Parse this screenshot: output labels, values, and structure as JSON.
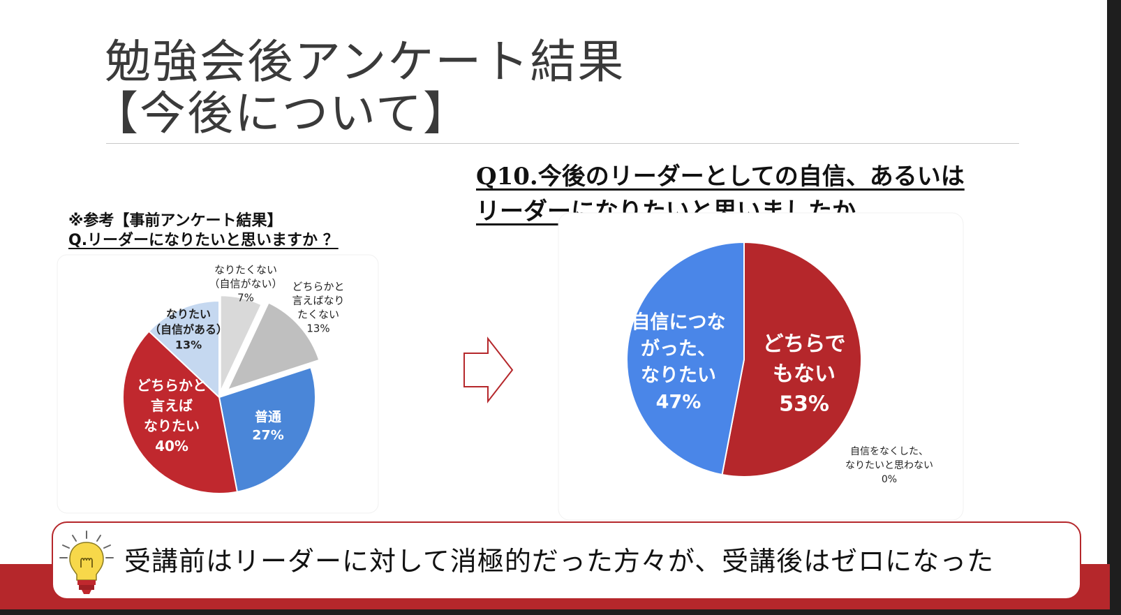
{
  "title": {
    "line1": "勉強会後アンケート結果",
    "line2": "【今後について】"
  },
  "reference": {
    "heading": "※参考【事前アンケート結果】",
    "question": "Q.リーダーになりたいと思いますか ？"
  },
  "question": {
    "line1": "Q10.今後のリーダーとしての自信、あるいは",
    "line2": "リーダーになりたいと思いましたか"
  },
  "conclusion": {
    "text": "受講前はリーダーに対して消極的だった方々が、受講後はゼロになった"
  },
  "chart_data": [
    {
      "type": "pie",
      "slices": [
        {
          "label_lines": [
            "なりたくない",
            "（自信がない）",
            "7%"
          ],
          "value": 7,
          "color": "#d9d9d9"
        },
        {
          "label_lines": [
            "どちらかと",
            "言えばなり",
            "たくない",
            "13%"
          ],
          "value": 13,
          "color": "#bfbfbf"
        },
        {
          "label_lines": [
            "普通",
            "27%"
          ],
          "value": 27,
          "color": "#4a86d8"
        },
        {
          "label_lines": [
            "どちらかと",
            "言えば",
            "なりたい",
            "40%"
          ],
          "value": 40,
          "color": "#c0282e"
        },
        {
          "label_lines": [
            "なりたい",
            "（自信がある）",
            "13%"
          ],
          "value": 13,
          "color": "#c5d8f0"
        }
      ]
    },
    {
      "type": "pie",
      "slices": [
        {
          "label_lines": [
            "どちらで",
            "もない",
            "53%"
          ],
          "value": 53,
          "color": "#b5272b"
        },
        {
          "label_lines": [
            "自信をなくした、",
            "なりたいと思わない",
            "0%"
          ],
          "value": 0,
          "color": "#888888"
        },
        {
          "label_lines": [
            "自信につな",
            "がった、",
            "なりたい",
            "47%"
          ],
          "value": 47,
          "color": "#4a86e8"
        }
      ]
    }
  ]
}
